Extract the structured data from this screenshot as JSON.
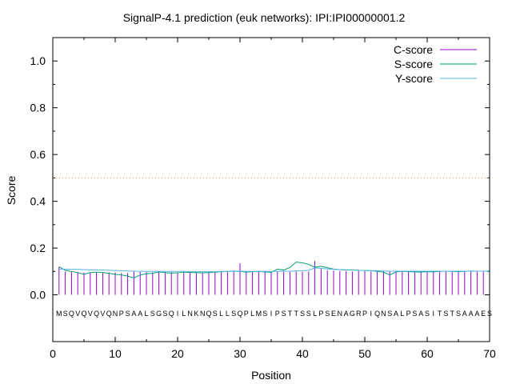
{
  "chart_data": {
    "type": "line",
    "title": "SignalP-4.1 prediction (euk networks): IPI:IPI00000001.2",
    "xlabel": "Position",
    "ylabel": "Score",
    "xlim": [
      0,
      70
    ],
    "ylim": [
      -0.2,
      1.1
    ],
    "xticks": [
      0,
      10,
      20,
      30,
      40,
      50,
      60,
      70
    ],
    "yticks": [
      0.0,
      0.2,
      0.4,
      0.6,
      0.8,
      1.0
    ],
    "threshold": 0.5,
    "legend_position": "top-right",
    "sequence": [
      "M",
      "S",
      "Q",
      "V",
      "Q",
      "V",
      "Q",
      "V",
      "Q",
      "N",
      "P",
      "S",
      "A",
      "A",
      "L",
      "S",
      "G",
      "S",
      "Q",
      "I",
      "L",
      "N",
      "K",
      "N",
      "Q",
      "S",
      "L",
      "L",
      "S",
      "Q",
      "P",
      "L",
      "M",
      "S",
      "I",
      "P",
      "S",
      "T",
      "T",
      "S",
      "S",
      "L",
      "P",
      "S",
      "E",
      "N",
      "A",
      "G",
      "R",
      "P",
      "I",
      "Q",
      "N",
      "S",
      "A",
      "L",
      "P",
      "S",
      "A",
      "S",
      "I",
      "T",
      "S",
      "T",
      "S",
      "A",
      "A",
      "A",
      "E",
      "S"
    ],
    "series": [
      {
        "name": "C-score",
        "style": "impulses",
        "color": "#9400d3",
        "values": [
          0.12,
          0.1,
          0.098,
          0.097,
          0.095,
          0.096,
          0.097,
          0.097,
          0.096,
          0.095,
          0.094,
          0.093,
          0.1,
          0.098,
          0.097,
          0.096,
          0.099,
          0.098,
          0.097,
          0.096,
          0.098,
          0.097,
          0.096,
          0.095,
          0.097,
          0.096,
          0.098,
          0.097,
          0.099,
          0.135,
          0.1,
          0.098,
          0.099,
          0.098,
          0.097,
          0.1,
          0.099,
          0.098,
          0.1,
          0.099,
          0.1,
          0.145,
          0.11,
          0.105,
          0.103,
          0.102,
          0.101,
          0.1,
          0.102,
          0.101,
          0.1,
          0.1,
          0.101,
          0.1,
          0.099,
          0.1,
          0.099,
          0.1,
          0.101,
          0.1,
          0.1,
          0.1,
          0.1,
          0.101,
          0.1,
          0.1,
          0.101,
          0.1,
          0.101,
          0.102
        ]
      },
      {
        "name": "S-score",
        "style": "line",
        "color": "#009e73",
        "values": [
          0.12,
          0.105,
          0.1,
          0.095,
          0.088,
          0.095,
          0.097,
          0.096,
          0.092,
          0.088,
          0.085,
          0.08,
          0.072,
          0.085,
          0.09,
          0.092,
          0.098,
          0.095,
          0.093,
          0.094,
          0.097,
          0.096,
          0.095,
          0.094,
          0.095,
          0.097,
          0.099,
          0.1,
          0.101,
          0.1,
          0.097,
          0.099,
          0.1,
          0.098,
          0.096,
          0.11,
          0.106,
          0.117,
          0.14,
          0.137,
          0.13,
          0.118,
          0.122,
          0.116,
          0.11,
          0.108,
          0.106,
          0.107,
          0.105,
          0.104,
          0.103,
          0.1,
          0.097,
          0.085,
          0.098,
          0.1,
          0.099,
          0.098,
          0.097,
          0.099,
          0.098,
          0.1,
          0.101,
          0.1,
          0.099,
          0.1,
          0.102,
          0.101,
          0.101,
          0.102
        ]
      },
      {
        "name": "Y-score",
        "style": "line",
        "color": "#56b4e9",
        "values": [
          0.11,
          0.11,
          0.109,
          0.109,
          0.108,
          0.107,
          0.107,
          0.106,
          0.105,
          0.104,
          0.103,
          0.102,
          0.101,
          0.1,
          0.1,
          0.1,
          0.1,
          0.1,
          0.1,
          0.1,
          0.1,
          0.099,
          0.099,
          0.099,
          0.099,
          0.099,
          0.1,
          0.1,
          0.1,
          0.101,
          0.1,
          0.1,
          0.1,
          0.1,
          0.1,
          0.1,
          0.101,
          0.101,
          0.102,
          0.103,
          0.105,
          0.115,
          0.113,
          0.111,
          0.109,
          0.108,
          0.107,
          0.106,
          0.105,
          0.104,
          0.103,
          0.103,
          0.102,
          0.101,
          0.101,
          0.101,
          0.101,
          0.101,
          0.101,
          0.101,
          0.101,
          0.101,
          0.101,
          0.101,
          0.101,
          0.101,
          0.101,
          0.101,
          0.101,
          0.101
        ]
      }
    ]
  },
  "colors": {
    "threshold": "#d98a1f"
  }
}
